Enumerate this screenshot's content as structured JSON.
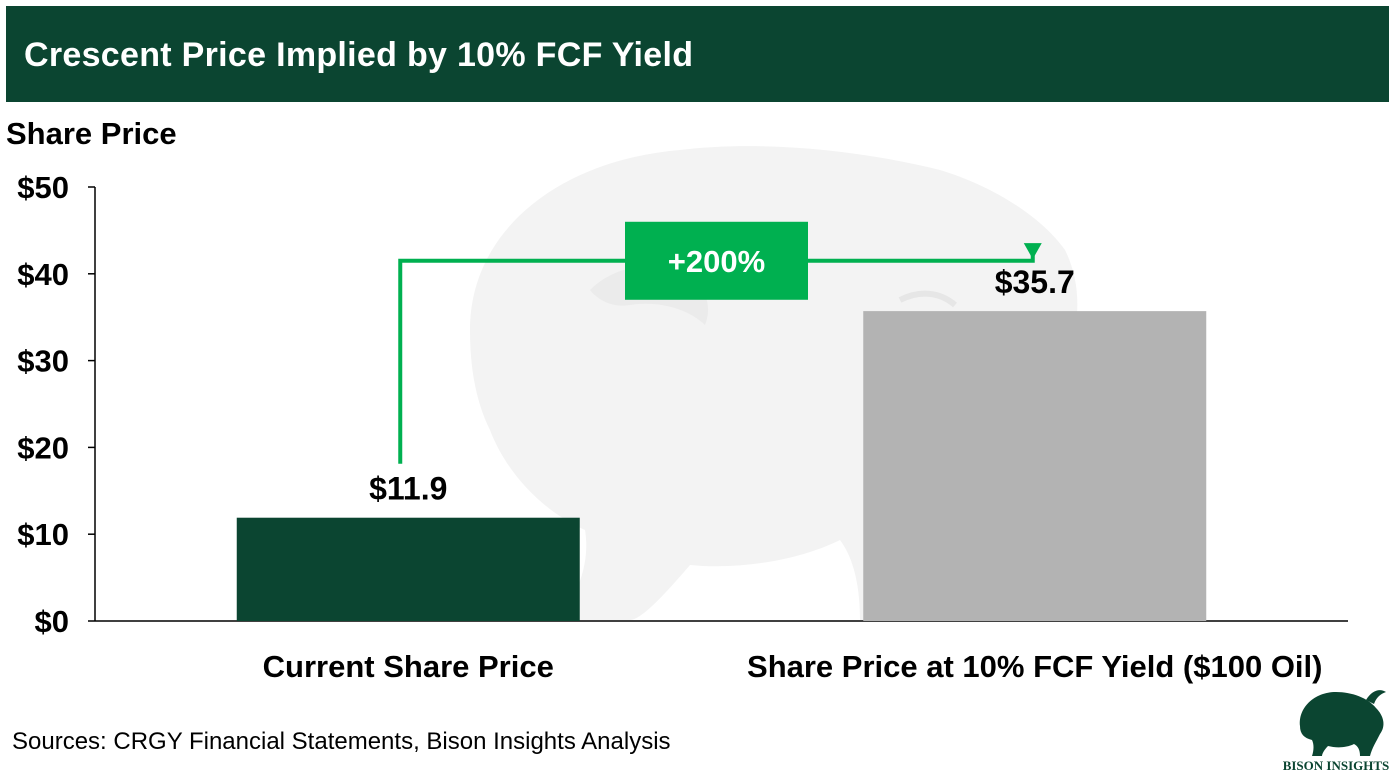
{
  "chart_data": {
    "type": "bar",
    "title": "Crescent Price Implied by 10% FCF Yield",
    "ylabel": "Share Price",
    "xlabel": "",
    "ylim": [
      0,
      50
    ],
    "yticks": [
      0,
      10,
      20,
      30,
      40,
      50
    ],
    "ytick_labels": [
      "$0",
      "$10",
      "$20",
      "$30",
      "$40",
      "$50"
    ],
    "categories": [
      "Current Share Price",
      "Share Price at 10% FCF Yield ($100 Oil)"
    ],
    "values": [
      11.9,
      35.7
    ],
    "data_labels": [
      "$11.9",
      "$35.7"
    ],
    "bar_colors": [
      "#0b4531",
      "#b3b3b3"
    ],
    "grid": false,
    "annotation": {
      "text": "+200%",
      "color": "#00b050",
      "from_category": 0,
      "to_category": 1
    }
  },
  "source_note": "Sources: CRGY Financial Statements, Bison Insights Analysis",
  "logo": {
    "text": "BISON INSIGHTS",
    "icon": "bison-icon"
  },
  "colors": {
    "header_bg": "#0b4531",
    "accent": "#00b050",
    "watermark": "#f2f2f2"
  }
}
